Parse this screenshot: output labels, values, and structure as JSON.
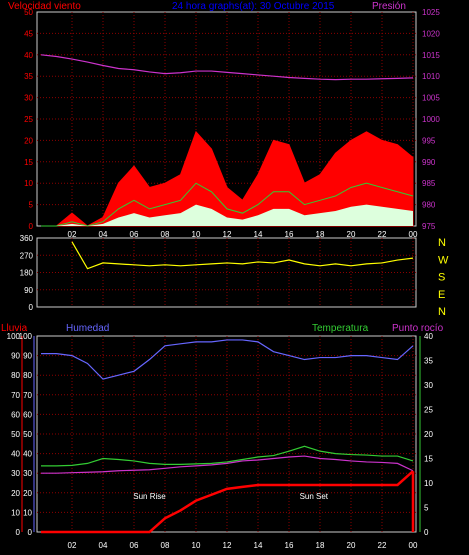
{
  "header": {
    "wind_label": "Velocidad viento",
    "title": "24 hora graphs(at): 30 Octubre 2015",
    "pressure_label": "Presión"
  },
  "lower_header": {
    "rain_label": "Lluvia",
    "humidity_label": "Humedad",
    "temperature_label": "Temperatura",
    "dewpoint_label": "Punto rocío"
  },
  "x_ticks": [
    "02",
    "04",
    "06",
    "08",
    "10",
    "12",
    "14",
    "16",
    "18",
    "20",
    "22",
    "00"
  ],
  "colors": {
    "wind_axis": "#ff0000",
    "pressure": "#cc33cc",
    "direction": "#ffff00",
    "humidity": "#6666ff",
    "temperature": "#33cc33",
    "dewpoint": "#cc33cc",
    "rain": "#ff0000",
    "grid": "#8b0000"
  },
  "chart_data": [
    {
      "type": "area",
      "name": "wind_pressure",
      "y_left": {
        "label": "Velocidad viento",
        "ticks": [
          "0",
          "5",
          "10",
          "15",
          "20",
          "25",
          "30",
          "35",
          "40",
          "45",
          "50"
        ],
        "range": [
          0,
          50
        ]
      },
      "y_right": {
        "label": "Presión",
        "ticks": [
          "975",
          "980",
          "985",
          "990",
          "995",
          "1000",
          "1005",
          "1010",
          "1015",
          "1020",
          "1025"
        ],
        "range": [
          975,
          1025
        ]
      },
      "x_hours": [
        0,
        1,
        2,
        3,
        4,
        5,
        6,
        7,
        8,
        9,
        10,
        11,
        12,
        13,
        14,
        15,
        16,
        17,
        18,
        19,
        20,
        21,
        22,
        23,
        24
      ],
      "series": [
        {
          "name": "gust",
          "values": [
            0,
            0,
            3,
            0,
            2,
            10,
            14,
            9,
            10,
            12,
            22,
            18,
            9,
            6,
            12,
            20,
            19,
            10,
            12,
            17,
            20,
            22,
            20,
            19,
            16
          ]
        },
        {
          "name": "average",
          "values": [
            0,
            0,
            1,
            0,
            1,
            4,
            6,
            4,
            5,
            6,
            10,
            8,
            4,
            3,
            5,
            8,
            8,
            5,
            6,
            7,
            9,
            10,
            9,
            8,
            7
          ]
        },
        {
          "name": "pressure",
          "values": [
            1015,
            1014.6,
            1014,
            1013.3,
            1012.5,
            1011.8,
            1011.5,
            1011,
            1010.6,
            1010.8,
            1011.2,
            1011.2,
            1010.9,
            1010.6,
            1010.3,
            1010,
            1009.7,
            1009.5,
            1009.3,
            1009.2,
            1009.3,
            1009.3,
            1009.4,
            1009.5,
            1009.6
          ]
        }
      ]
    },
    {
      "type": "line",
      "name": "wind_direction",
      "y_left": {
        "ticks": [
          "360",
          "270",
          "180",
          "90",
          "0"
        ],
        "range": [
          0,
          360
        ]
      },
      "y_right_labels": [
        "N",
        "W",
        "S",
        "E",
        "N"
      ],
      "x_hours": [
        0,
        1,
        2,
        3,
        4,
        5,
        6,
        7,
        8,
        9,
        10,
        11,
        12,
        13,
        14,
        15,
        16,
        17,
        18,
        19,
        20,
        21,
        22,
        23,
        24
      ],
      "values": [
        null,
        null,
        340,
        200,
        230,
        225,
        220,
        215,
        220,
        215,
        220,
        225,
        230,
        225,
        235,
        230,
        245,
        225,
        215,
        225,
        215,
        225,
        230,
        245,
        255
      ]
    },
    {
      "type": "line",
      "name": "humidity_temp_rain",
      "y_left_rain": {
        "label": "Lluvia",
        "ticks": [
          "0",
          "10",
          "20",
          "30",
          "40",
          "50",
          "60",
          "70",
          "80",
          "90",
          "100"
        ],
        "range": [
          0,
          100
        ]
      },
      "y_left_humidity": {
        "label": "Humedad",
        "ticks": [
          "0",
          "10",
          "20",
          "30",
          "40",
          "50",
          "60",
          "70",
          "80",
          "90",
          "100"
        ],
        "range": [
          0,
          100
        ]
      },
      "y_right": {
        "label": "Temperatura",
        "ticks": [
          "0",
          "5",
          "10",
          "15",
          "20",
          "25",
          "30",
          "35",
          "40"
        ],
        "range": [
          0,
          40
        ]
      },
      "x_hours": [
        0,
        1,
        2,
        3,
        4,
        5,
        6,
        7,
        8,
        9,
        10,
        11,
        12,
        13,
        14,
        15,
        16,
        17,
        18,
        19,
        20,
        21,
        22,
        23,
        24
      ],
      "annotations": [
        "Sun Rise",
        "Sun Set"
      ],
      "series": [
        {
          "name": "humidity",
          "values": [
            91,
            91,
            90,
            86,
            78,
            80,
            82,
            88,
            95,
            96,
            97,
            97,
            98,
            98,
            97,
            92,
            90,
            88,
            89,
            89,
            90,
            90,
            89,
            88,
            95
          ]
        },
        {
          "name": "temperature",
          "values": [
            13.5,
            13.5,
            13.6,
            14,
            15,
            14.8,
            14.5,
            14,
            13.8,
            13.8,
            13.9,
            14,
            14.3,
            14.8,
            15.3,
            15.6,
            16.5,
            17.5,
            16.5,
            16,
            15.8,
            15.7,
            15.5,
            15.5,
            14.5
          ]
        },
        {
          "name": "dewpoint",
          "values": [
            12,
            12,
            12.1,
            12.2,
            12.3,
            12.5,
            12.6,
            12.7,
            13,
            13.3,
            13.5,
            13.7,
            14,
            14.5,
            14.7,
            15,
            15.3,
            15.5,
            15,
            14.8,
            14.5,
            14.3,
            14.2,
            14,
            12.5
          ]
        },
        {
          "name": "rain",
          "values": [
            0,
            0,
            0,
            0,
            0,
            0,
            0,
            0,
            7,
            11,
            16,
            19,
            22,
            23,
            24,
            24,
            24,
            24,
            24,
            24,
            24,
            24,
            24,
            24,
            31
          ]
        }
      ]
    }
  ]
}
